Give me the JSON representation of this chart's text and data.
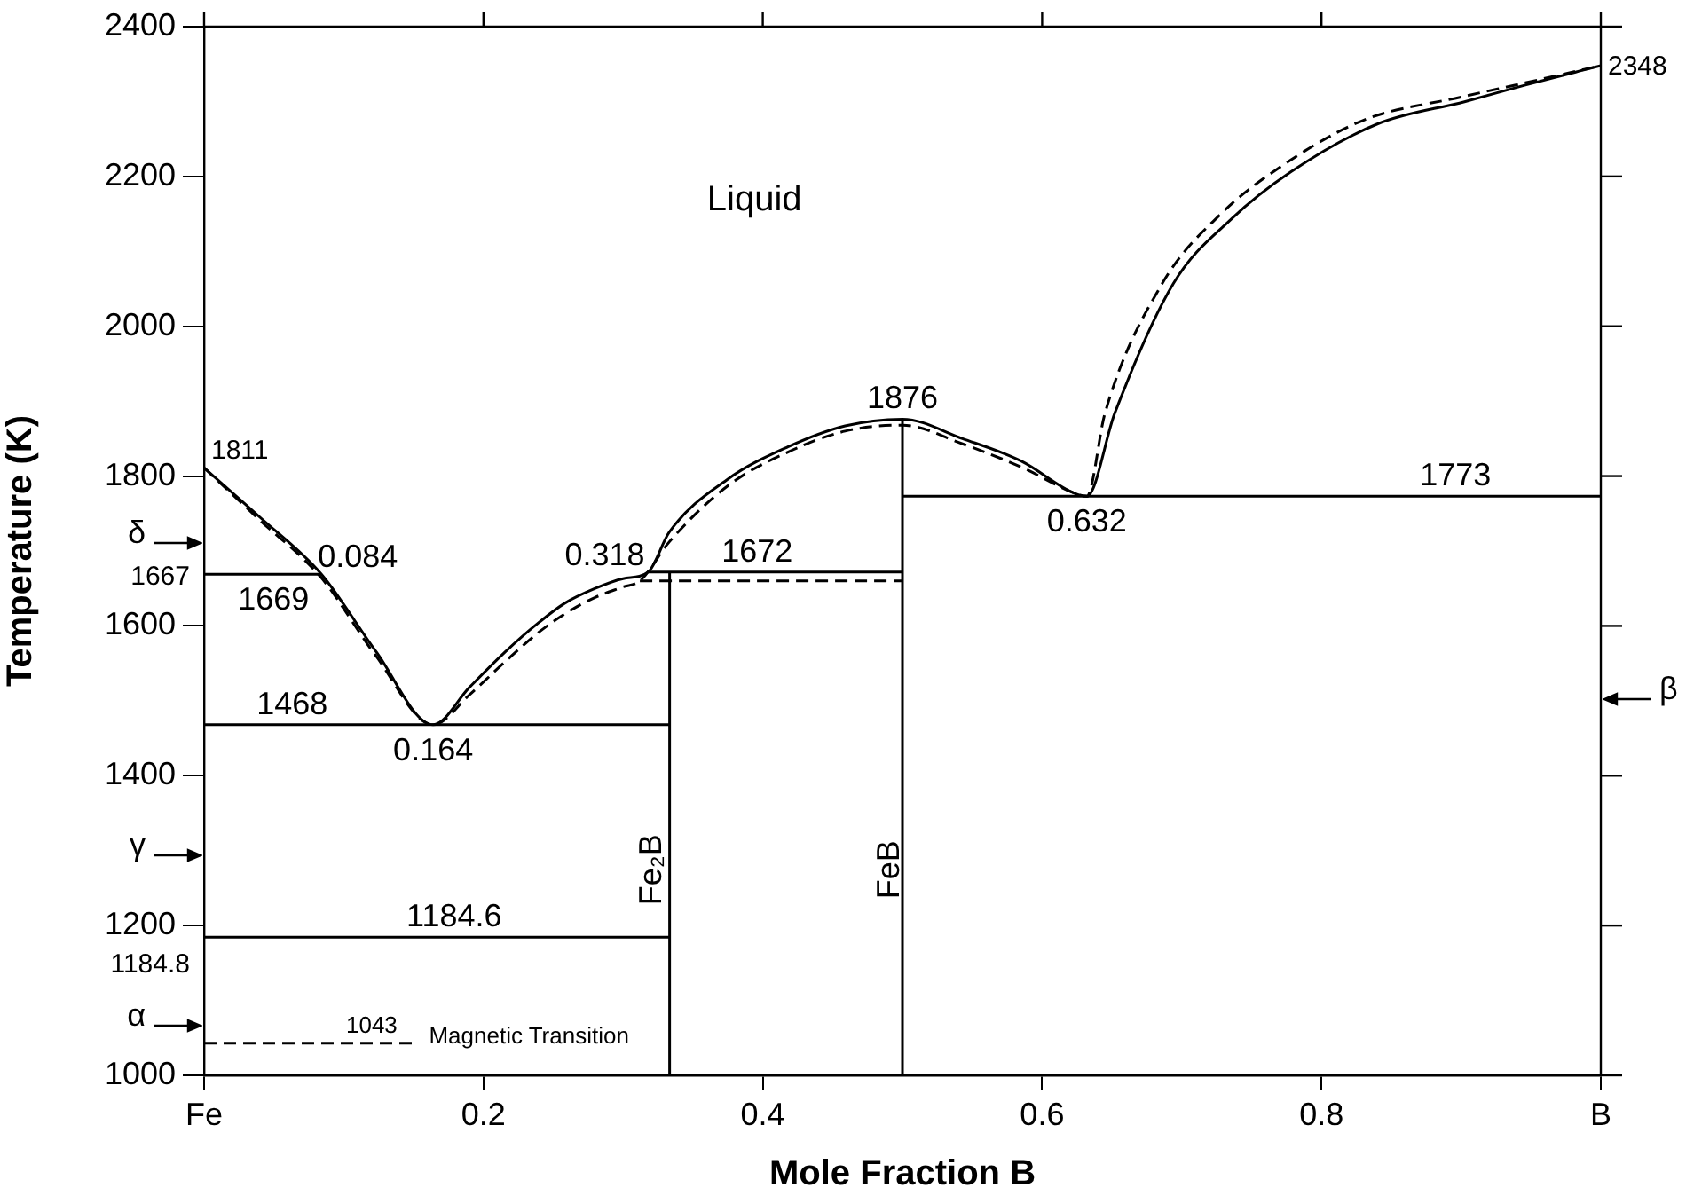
{
  "chart_data": {
    "type": "line",
    "xlabel": "Mole Fraction B",
    "ylabel": "Temperature (K)",
    "xlim": [
      0,
      1
    ],
    "xticks": [
      {
        "value": 0,
        "label": "Fe"
      },
      0.2,
      0.4,
      0.6,
      0.8,
      {
        "value": 1,
        "label": "B"
      }
    ],
    "ylim": [
      1000,
      2400
    ],
    "yticks": [
      1000,
      1200,
      1400,
      1600,
      1800,
      2000,
      2200,
      2400
    ],
    "marker": "none",
    "legend": false,
    "series": [
      {
        "color": "#000000",
        "line_style": "solid",
        "x": [
          0,
          0.04,
          0.084,
          0.123,
          0.164,
          0.19,
          0.216,
          0.24,
          0.258,
          0.28,
          0.3,
          0.318,
          0.333,
          0.375,
          0.418,
          0.459,
          0.5,
          0.543,
          0.585,
          0.623,
          0.632,
          0.652,
          0.694,
          0.736,
          0.778,
          0.84,
          0.903,
          0.946,
          1
        ],
        "values": [
          1811,
          1745,
          1669,
          1566,
          1468,
          1518,
          1566,
          1605,
          1630,
          1650,
          1663,
          1672,
          1725,
          1796,
          1839,
          1867,
          1876,
          1850,
          1820,
          1777,
          1773,
          1884,
          2057,
          2144,
          2206,
          2270,
          2300,
          2322,
          2348
        ]
      },
      {
        "color": "#000000",
        "line_style": "dashed",
        "x": [
          0,
          0.04,
          0.084,
          0.123,
          0.164,
          0.19,
          0.216,
          0.24,
          0.26,
          0.28,
          0.3,
          0.312,
          0.333,
          0.375,
          0.418,
          0.459,
          0.5,
          0.543,
          0.585,
          0.625,
          0.632,
          0.645,
          0.686,
          0.728,
          0.77,
          0.83,
          0.9,
          0.946,
          1
        ],
        "values": [
          1811,
          1741,
          1664,
          1560,
          1468,
          1508,
          1553,
          1592,
          1618,
          1638,
          1652,
          1660,
          1712,
          1787,
          1832,
          1860,
          1868,
          1843,
          1812,
          1776,
          1773,
          1884,
          2057,
          2150,
          2212,
          2275,
          2306,
          2325,
          2348
        ]
      },
      {
        "color": "#000000",
        "line_style": "solid",
        "x": [
          0,
          0.084
        ],
        "values": [
          1669,
          1669
        ]
      },
      {
        "color": "#000000",
        "line_style": "solid",
        "x": [
          0,
          0.3333
        ],
        "values": [
          1468,
          1468
        ]
      },
      {
        "color": "#000000",
        "line_style": "solid",
        "x": [
          0,
          0.3333
        ],
        "values": [
          1184.6,
          1184.6
        ]
      },
      {
        "color": "#000000",
        "line_style": "solid",
        "x": [
          0.318,
          0.5
        ],
        "values": [
          1672,
          1672
        ]
      },
      {
        "color": "#000000",
        "line_style": "dashed",
        "x": [
          0.312,
          0.5
        ],
        "values": [
          1660,
          1660
        ]
      },
      {
        "color": "#000000",
        "line_style": "solid",
        "x": [
          0.5,
          1
        ],
        "values": [
          1773,
          1773
        ]
      },
      {
        "color": "#000000",
        "line_style": "dashed",
        "x": [
          0,
          0.153
        ],
        "values": [
          1043,
          1043
        ]
      },
      {
        "color": "#000000",
        "line_style": "solid",
        "x": [
          0.3333,
          0.3333
        ],
        "values": [
          1000,
          1672
        ]
      },
      {
        "color": "#000000",
        "line_style": "solid",
        "x": [
          0.5,
          0.5
        ],
        "values": [
          1000,
          1876
        ]
      }
    ],
    "annotations": [
      "Liquid",
      {
        "text": "1811",
        "x": 0,
        "y": 1811
      },
      {
        "text": "0.084",
        "x": 0.084,
        "y": 1669
      },
      {
        "text": "1669",
        "x": 0.084,
        "y": 1669
      },
      {
        "text": "1667",
        "x": 0,
        "y": 1667
      },
      "δ",
      {
        "text": "1468",
        "x": 0.063,
        "y": 1468
      },
      {
        "text": "0.164",
        "x": 0.164,
        "y": 1468
      },
      {
        "text": "0.318",
        "x": 0.318,
        "y": 1672
      },
      {
        "text": "1672",
        "x": 0.396,
        "y": 1672
      },
      {
        "text": "1876",
        "x": 0.5,
        "y": 1876
      },
      {
        "text": "0.632",
        "x": 0.632,
        "y": 1773
      },
      {
        "text": "1773",
        "x": 0.896,
        "y": 1773
      },
      {
        "text": "2348",
        "x": 1,
        "y": 2348
      },
      "β",
      "γ",
      "α",
      {
        "text": "1184.6",
        "x": 0.179,
        "y": 1184.6
      },
      {
        "text": "1184.8",
        "x": 0,
        "y": 1184.8
      },
      {
        "text": "1043",
        "x": 0.12,
        "y": 1043
      },
      "Magnetic Transition",
      "Fe₂B",
      "FeB"
    ]
  }
}
